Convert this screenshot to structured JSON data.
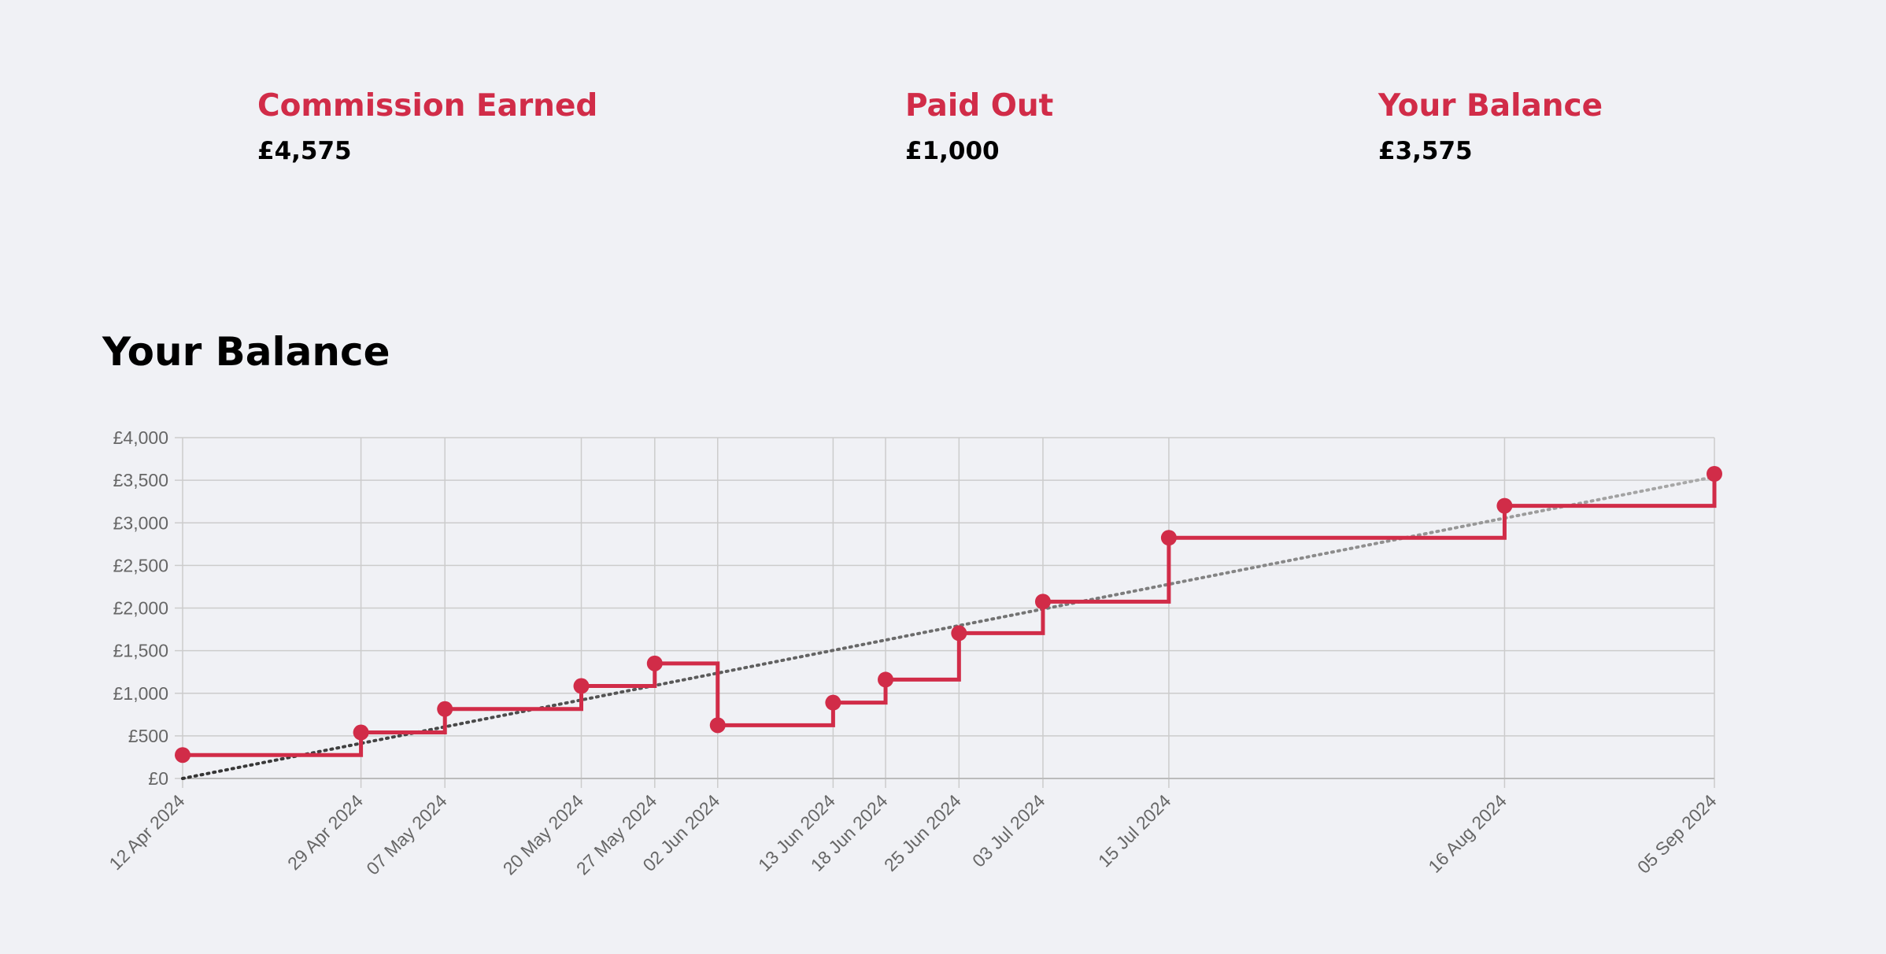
{
  "stats": [
    {
      "label": "Commission Earned",
      "value": "£4,575"
    },
    {
      "label": "Paid Out",
      "value": "£1,000"
    },
    {
      "label": "Your Balance",
      "value": "£3,575"
    }
  ],
  "section_title": "Your Balance",
  "colors": {
    "accent": "#d12c48",
    "trend": "#555555",
    "grid": "#cccccc",
    "background": "#f0f1f5"
  },
  "chart_data": {
    "type": "line",
    "title": "",
    "xlabel": "",
    "ylabel": "",
    "step": true,
    "grid": true,
    "legend": "none",
    "ylim": [
      0,
      4000
    ],
    "yticks": [
      0,
      500,
      1000,
      1500,
      2000,
      2500,
      3000,
      3500,
      4000
    ],
    "ytick_labels": [
      "£0",
      "£500",
      "£1,000",
      "£1,500",
      "£2,000",
      "£2,500",
      "£3,000",
      "£3,500",
      "£4,000"
    ],
    "xlim": [
      "2024-04-12",
      "2024-09-05"
    ],
    "x": [
      "2024-04-12",
      "2024-04-29",
      "2024-05-07",
      "2024-05-20",
      "2024-05-27",
      "2024-06-02",
      "2024-06-13",
      "2024-06-18",
      "2024-06-25",
      "2024-07-03",
      "2024-07-15",
      "2024-08-16",
      "2024-09-05"
    ],
    "x_labels": [
      "12 Apr 2024",
      "29 Apr 2024",
      "07 May 2024",
      "20 May 2024",
      "27 May 2024",
      "02 Jun 2024",
      "13 Jun 2024",
      "18 Jun 2024",
      "25 Jun 2024",
      "03 Jul 2024",
      "15 Jul 2024",
      "16 Aug 2024",
      "05 Sep 2024"
    ],
    "series": [
      {
        "name": "",
        "style": "step",
        "values": [
          275,
          540,
          815,
          1085,
          1350,
          625,
          890,
          1160,
          1705,
          2075,
          2825,
          3200,
          3575
        ]
      }
    ],
    "trendline": {
      "style": "dotted",
      "start": [
        "2024-04-12",
        0
      ],
      "end": [
        "2024-09-05",
        3540
      ]
    }
  }
}
